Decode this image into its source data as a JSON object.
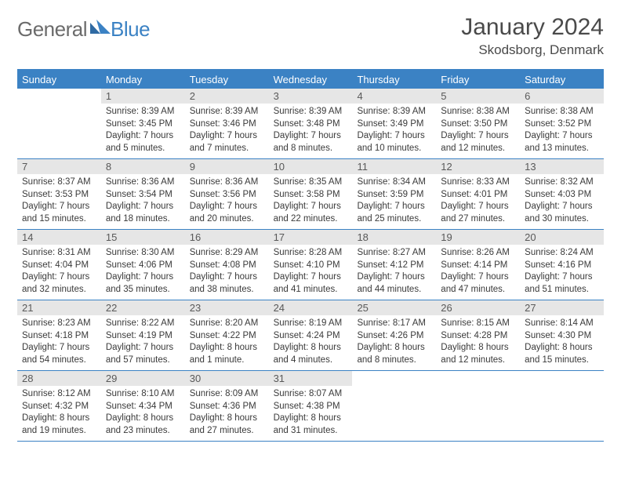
{
  "logo": {
    "word1": "General",
    "word2": "Blue"
  },
  "title": "January 2024",
  "location": "Skodsborg, Denmark",
  "colors": {
    "brand": "#3b82c4",
    "daybar": "#e6e6e6",
    "text": "#3a3a3a",
    "headerText": "#4a4a4a"
  },
  "weekdays": [
    "Sunday",
    "Monday",
    "Tuesday",
    "Wednesday",
    "Thursday",
    "Friday",
    "Saturday"
  ],
  "weeks": [
    [
      null,
      {
        "n": "1",
        "sunrise": "8:39 AM",
        "sunset": "3:45 PM",
        "daylight1": "Daylight: 7 hours",
        "daylight2": "and 5 minutes."
      },
      {
        "n": "2",
        "sunrise": "8:39 AM",
        "sunset": "3:46 PM",
        "daylight1": "Daylight: 7 hours",
        "daylight2": "and 7 minutes."
      },
      {
        "n": "3",
        "sunrise": "8:39 AM",
        "sunset": "3:48 PM",
        "daylight1": "Daylight: 7 hours",
        "daylight2": "and 8 minutes."
      },
      {
        "n": "4",
        "sunrise": "8:39 AM",
        "sunset": "3:49 PM",
        "daylight1": "Daylight: 7 hours",
        "daylight2": "and 10 minutes."
      },
      {
        "n": "5",
        "sunrise": "8:38 AM",
        "sunset": "3:50 PM",
        "daylight1": "Daylight: 7 hours",
        "daylight2": "and 12 minutes."
      },
      {
        "n": "6",
        "sunrise": "8:38 AM",
        "sunset": "3:52 PM",
        "daylight1": "Daylight: 7 hours",
        "daylight2": "and 13 minutes."
      }
    ],
    [
      {
        "n": "7",
        "sunrise": "8:37 AM",
        "sunset": "3:53 PM",
        "daylight1": "Daylight: 7 hours",
        "daylight2": "and 15 minutes."
      },
      {
        "n": "8",
        "sunrise": "8:36 AM",
        "sunset": "3:54 PM",
        "daylight1": "Daylight: 7 hours",
        "daylight2": "and 18 minutes."
      },
      {
        "n": "9",
        "sunrise": "8:36 AM",
        "sunset": "3:56 PM",
        "daylight1": "Daylight: 7 hours",
        "daylight2": "and 20 minutes."
      },
      {
        "n": "10",
        "sunrise": "8:35 AM",
        "sunset": "3:58 PM",
        "daylight1": "Daylight: 7 hours",
        "daylight2": "and 22 minutes."
      },
      {
        "n": "11",
        "sunrise": "8:34 AM",
        "sunset": "3:59 PM",
        "daylight1": "Daylight: 7 hours",
        "daylight2": "and 25 minutes."
      },
      {
        "n": "12",
        "sunrise": "8:33 AM",
        "sunset": "4:01 PM",
        "daylight1": "Daylight: 7 hours",
        "daylight2": "and 27 minutes."
      },
      {
        "n": "13",
        "sunrise": "8:32 AM",
        "sunset": "4:03 PM",
        "daylight1": "Daylight: 7 hours",
        "daylight2": "and 30 minutes."
      }
    ],
    [
      {
        "n": "14",
        "sunrise": "8:31 AM",
        "sunset": "4:04 PM",
        "daylight1": "Daylight: 7 hours",
        "daylight2": "and 32 minutes."
      },
      {
        "n": "15",
        "sunrise": "8:30 AM",
        "sunset": "4:06 PM",
        "daylight1": "Daylight: 7 hours",
        "daylight2": "and 35 minutes."
      },
      {
        "n": "16",
        "sunrise": "8:29 AM",
        "sunset": "4:08 PM",
        "daylight1": "Daylight: 7 hours",
        "daylight2": "and 38 minutes."
      },
      {
        "n": "17",
        "sunrise": "8:28 AM",
        "sunset": "4:10 PM",
        "daylight1": "Daylight: 7 hours",
        "daylight2": "and 41 minutes."
      },
      {
        "n": "18",
        "sunrise": "8:27 AM",
        "sunset": "4:12 PM",
        "daylight1": "Daylight: 7 hours",
        "daylight2": "and 44 minutes."
      },
      {
        "n": "19",
        "sunrise": "8:26 AM",
        "sunset": "4:14 PM",
        "daylight1": "Daylight: 7 hours",
        "daylight2": "and 47 minutes."
      },
      {
        "n": "20",
        "sunrise": "8:24 AM",
        "sunset": "4:16 PM",
        "daylight1": "Daylight: 7 hours",
        "daylight2": "and 51 minutes."
      }
    ],
    [
      {
        "n": "21",
        "sunrise": "8:23 AM",
        "sunset": "4:18 PM",
        "daylight1": "Daylight: 7 hours",
        "daylight2": "and 54 minutes."
      },
      {
        "n": "22",
        "sunrise": "8:22 AM",
        "sunset": "4:19 PM",
        "daylight1": "Daylight: 7 hours",
        "daylight2": "and 57 minutes."
      },
      {
        "n": "23",
        "sunrise": "8:20 AM",
        "sunset": "4:22 PM",
        "daylight1": "Daylight: 8 hours",
        "daylight2": "and 1 minute."
      },
      {
        "n": "24",
        "sunrise": "8:19 AM",
        "sunset": "4:24 PM",
        "daylight1": "Daylight: 8 hours",
        "daylight2": "and 4 minutes."
      },
      {
        "n": "25",
        "sunrise": "8:17 AM",
        "sunset": "4:26 PM",
        "daylight1": "Daylight: 8 hours",
        "daylight2": "and 8 minutes."
      },
      {
        "n": "26",
        "sunrise": "8:15 AM",
        "sunset": "4:28 PM",
        "daylight1": "Daylight: 8 hours",
        "daylight2": "and 12 minutes."
      },
      {
        "n": "27",
        "sunrise": "8:14 AM",
        "sunset": "4:30 PM",
        "daylight1": "Daylight: 8 hours",
        "daylight2": "and 15 minutes."
      }
    ],
    [
      {
        "n": "28",
        "sunrise": "8:12 AM",
        "sunset": "4:32 PM",
        "daylight1": "Daylight: 8 hours",
        "daylight2": "and 19 minutes."
      },
      {
        "n": "29",
        "sunrise": "8:10 AM",
        "sunset": "4:34 PM",
        "daylight1": "Daylight: 8 hours",
        "daylight2": "and 23 minutes."
      },
      {
        "n": "30",
        "sunrise": "8:09 AM",
        "sunset": "4:36 PM",
        "daylight1": "Daylight: 8 hours",
        "daylight2": "and 27 minutes."
      },
      {
        "n": "31",
        "sunrise": "8:07 AM",
        "sunset": "4:38 PM",
        "daylight1": "Daylight: 8 hours",
        "daylight2": "and 31 minutes."
      },
      null,
      null,
      null
    ]
  ]
}
